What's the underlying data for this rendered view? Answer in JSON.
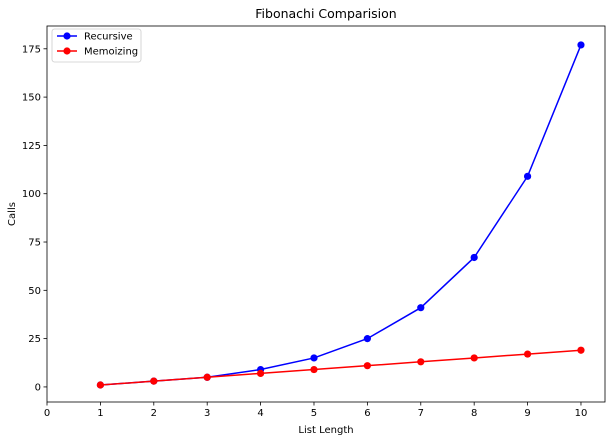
{
  "chart_data": {
    "type": "line",
    "title": "Fibonachi Comparision",
    "xlabel": "List Length",
    "ylabel": "Calls",
    "xlim": [
      0,
      10.45
    ],
    "ylim": [
      -7.8,
      186.8
    ],
    "xticks": [
      0,
      1,
      2,
      3,
      4,
      5,
      6,
      7,
      8,
      9,
      10
    ],
    "yticks": [
      0,
      25,
      50,
      75,
      100,
      125,
      150,
      175
    ],
    "grid": false,
    "legend_position": "top-left",
    "x": [
      1,
      2,
      3,
      4,
      5,
      6,
      7,
      8,
      9,
      10
    ],
    "series": [
      {
        "name": "Recursive",
        "color": "#0000ff",
        "marker": "circle",
        "values": [
          1,
          3,
          5,
          9,
          15,
          25,
          41,
          67,
          109,
          177
        ]
      },
      {
        "name": "Memoizing",
        "color": "#ff0000",
        "marker": "circle",
        "values": [
          1,
          3,
          5,
          7,
          9,
          11,
          13,
          15,
          17,
          19
        ]
      }
    ]
  }
}
